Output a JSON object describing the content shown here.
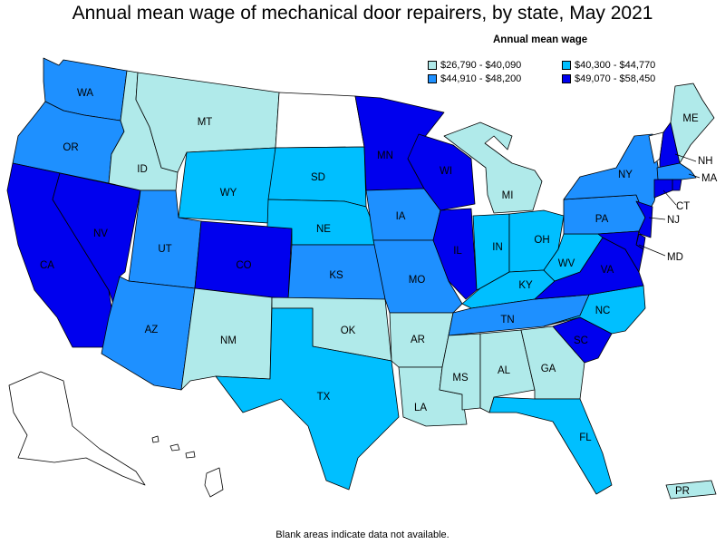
{
  "title": "Annual mean wage of mechanical door repairers, by state, May 2021",
  "legend": {
    "title": "Annual mean wage",
    "bins": [
      {
        "label": "$26,790 - $40,090",
        "color": "#b0eaea"
      },
      {
        "label": "$40,300 - $44,770",
        "color": "#00bfff"
      },
      {
        "label": "$44,910 - $48,200",
        "color": "#1e90ff"
      },
      {
        "label": "$49,070 - $58,450",
        "color": "#0000ee"
      }
    ],
    "no_data_color": "#ffffff"
  },
  "states": {
    "WA": {
      "label": "WA",
      "bin": 2
    },
    "OR": {
      "label": "OR",
      "bin": 2
    },
    "CA": {
      "label": "CA",
      "bin": 3
    },
    "NV": {
      "label": "NV",
      "bin": 3
    },
    "ID": {
      "label": "ID",
      "bin": 0
    },
    "MT": {
      "label": "MT",
      "bin": 0
    },
    "WY": {
      "label": "WY",
      "bin": 1
    },
    "UT": {
      "label": "UT",
      "bin": 2
    },
    "AZ": {
      "label": "AZ",
      "bin": 2
    },
    "CO": {
      "label": "CO",
      "bin": 3
    },
    "NM": {
      "label": "NM",
      "bin": 0
    },
    "ND": {
      "label": "",
      "bin": null
    },
    "SD": {
      "label": "SD",
      "bin": 1
    },
    "NE": {
      "label": "NE",
      "bin": 1
    },
    "KS": {
      "label": "KS",
      "bin": 2
    },
    "OK": {
      "label": "OK",
      "bin": 0
    },
    "TX": {
      "label": "TX",
      "bin": 1
    },
    "MN": {
      "label": "MN",
      "bin": 3
    },
    "IA": {
      "label": "IA",
      "bin": 2
    },
    "MO": {
      "label": "MO",
      "bin": 2
    },
    "AR": {
      "label": "AR",
      "bin": 0
    },
    "LA": {
      "label": "LA",
      "bin": 0
    },
    "WI": {
      "label": "WI",
      "bin": 3
    },
    "IL": {
      "label": "IL",
      "bin": 3
    },
    "MI": {
      "label": "MI",
      "bin": 0
    },
    "IN": {
      "label": "IN",
      "bin": 1
    },
    "OH": {
      "label": "OH",
      "bin": 1
    },
    "KY": {
      "label": "KY",
      "bin": 1
    },
    "TN": {
      "label": "TN",
      "bin": 2
    },
    "MS": {
      "label": "MS",
      "bin": 0
    },
    "AL": {
      "label": "AL",
      "bin": 0
    },
    "GA": {
      "label": "GA",
      "bin": 0
    },
    "FL": {
      "label": "FL",
      "bin": 1
    },
    "SC": {
      "label": "SC",
      "bin": 3
    },
    "NC": {
      "label": "NC",
      "bin": 1
    },
    "VA": {
      "label": "VA",
      "bin": 3
    },
    "WV": {
      "label": "WV",
      "bin": 1
    },
    "PA": {
      "label": "PA",
      "bin": 2
    },
    "NY": {
      "label": "NY",
      "bin": 2
    },
    "VT": {
      "label": "",
      "bin": null
    },
    "NH": {
      "label": "NH",
      "bin": 3
    },
    "ME": {
      "label": "ME",
      "bin": 0
    },
    "MA": {
      "label": "MA",
      "bin": 2
    },
    "RI": {
      "label": "",
      "bin": 3
    },
    "CT": {
      "label": "CT",
      "bin": 3
    },
    "NJ": {
      "label": "NJ",
      "bin": 3
    },
    "DE": {
      "label": "",
      "bin": 3
    },
    "MD": {
      "label": "MD",
      "bin": 3
    },
    "AK": {
      "label": "",
      "bin": null
    },
    "HI": {
      "label": "",
      "bin": null
    },
    "PR": {
      "label": "PR",
      "bin": 0
    }
  },
  "footnote": "Blank areas indicate data not available."
}
